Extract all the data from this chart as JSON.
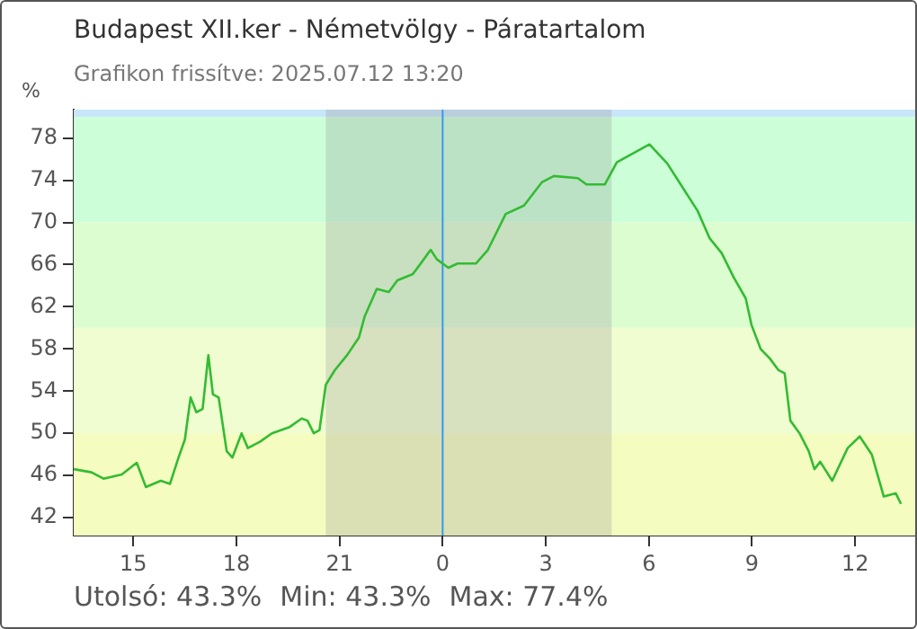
{
  "chart_data": {
    "type": "line",
    "title": "Budapest XII.ker - Németvölgy - Páratartalom",
    "subtitle": "Grafikon frissítve: 2025.07.12 13:20",
    "ylabel": "%",
    "x": [
      "2025-07-11T13:16",
      "2025-07-11T13:47",
      "2025-07-11T14:08",
      "2025-07-11T14:40",
      "2025-07-11T15:06",
      "2025-07-11T15:22",
      "2025-07-11T15:48",
      "2025-07-11T16:04",
      "2025-07-11T16:19",
      "2025-07-11T16:30",
      "2025-07-11T16:40",
      "2025-07-11T16:50",
      "2025-07-11T17:01",
      "2025-07-11T17:11",
      "2025-07-11T17:19",
      "2025-07-11T17:29",
      "2025-07-11T17:43",
      "2025-07-11T17:53",
      "2025-07-11T18:09",
      "2025-07-11T18:20",
      "2025-07-11T18:41",
      "2025-07-11T19:02",
      "2025-07-11T19:33",
      "2025-07-11T19:54",
      "2025-07-11T20:04",
      "2025-07-11T20:15",
      "2025-07-11T20:25",
      "2025-07-11T20:36",
      "2025-07-11T20:52",
      "2025-07-11T21:13",
      "2025-07-11T21:34",
      "2025-07-11T21:44",
      "2025-07-11T22:05",
      "2025-07-11T22:26",
      "2025-07-11T22:41",
      "2025-07-11T23:08",
      "2025-07-11T23:23",
      "2025-07-11T23:39",
      "2025-07-11T23:50",
      "2025-07-12T00:10",
      "2025-07-12T00:26",
      "2025-07-12T00:58",
      "2025-07-12T01:19",
      "2025-07-12T01:50",
      "2025-07-12T02:22",
      "2025-07-12T02:53",
      "2025-07-12T03:14",
      "2025-07-12T03:56",
      "2025-07-12T04:11",
      "2025-07-12T04:43",
      "2025-07-12T05:04",
      "2025-07-12T06:01",
      "2025-07-12T06:32",
      "2025-07-12T06:59",
      "2025-07-12T07:25",
      "2025-07-12T07:46",
      "2025-07-12T08:07",
      "2025-07-12T08:28",
      "2025-07-12T08:49",
      "2025-07-12T08:59",
      "2025-07-12T09:15",
      "2025-07-12T09:31",
      "2025-07-12T09:46",
      "2025-07-12T09:57",
      "2025-07-12T10:07",
      "2025-07-12T10:23",
      "2025-07-12T10:39",
      "2025-07-12T10:49",
      "2025-07-12T10:59",
      "2025-07-12T11:20",
      "2025-07-12T11:47",
      "2025-07-12T12:08",
      "2025-07-12T12:29",
      "2025-07-12T12:50",
      "2025-07-12T13:11",
      "2025-07-12T13:20"
    ],
    "series": [
      {
        "color": "#33bb33",
        "values": [
          46.6,
          46.3,
          45.7,
          46.1,
          47.2,
          44.9,
          45.5,
          45.2,
          47.7,
          49.4,
          53.4,
          52,
          52.3,
          57.4,
          53.7,
          53.4,
          48.3,
          47.7,
          50,
          48.6,
          49.2,
          50,
          50.6,
          51.4,
          51.2,
          50,
          50.3,
          54.6,
          56,
          57.4,
          59.1,
          61.1,
          63.7,
          63.4,
          64.5,
          65.1,
          66.2,
          67.4,
          66.5,
          65.7,
          66.1,
          66.1,
          67.4,
          70.8,
          71.6,
          73.8,
          74.4,
          74.2,
          73.6,
          73.6,
          75.7,
          77.4,
          75.6,
          73.3,
          71.1,
          68.5,
          67.1,
          64.8,
          62.8,
          60.3,
          58,
          57.1,
          56,
          55.7,
          51.2,
          50,
          48.3,
          46.6,
          47.3,
          45.5,
          48.6,
          49.7,
          48,
          44,
          44.3,
          43.3
        ]
      }
    ],
    "xlim": [
      "2025-07-11T13:16",
      "2025-07-12T13:48"
    ],
    "xticks": [
      {
        "value": "2025-07-11T15:00",
        "label": "15"
      },
      {
        "value": "2025-07-11T18:00",
        "label": "18"
      },
      {
        "value": "2025-07-11T21:00",
        "label": "21"
      },
      {
        "value": "2025-07-12T00:00",
        "label": "0"
      },
      {
        "value": "2025-07-12T03:00",
        "label": "3"
      },
      {
        "value": "2025-07-12T06:00",
        "label": "6"
      },
      {
        "value": "2025-07-12T09:00",
        "label": "9"
      },
      {
        "value": "2025-07-12T12:00",
        "label": "12"
      }
    ],
    "ylim": [
      40.3,
      80.7
    ],
    "yticks": [
      42,
      46,
      50,
      54,
      58,
      62,
      66,
      70,
      74,
      78
    ],
    "grid": false,
    "legend": false,
    "marker": "none",
    "line_style": "solid",
    "bands": [
      {
        "axis": "y",
        "from": 80,
        "to": 80.7,
        "color": "#c8e6fa"
      },
      {
        "axis": "y",
        "from": 70,
        "to": 80,
        "color": "#ccffd8"
      },
      {
        "axis": "y",
        "from": 60,
        "to": 70,
        "color": "#dcfdd0"
      },
      {
        "axis": "y",
        "from": 50,
        "to": 60,
        "color": "#f0fdd0"
      },
      {
        "axis": "y",
        "from": 40.3,
        "to": 50,
        "color": "#f5fcc0"
      },
      {
        "axis": "x",
        "from": "2025-07-11T20:36",
        "to": "2025-07-12T04:55",
        "color": "#8c8c8c"
      }
    ],
    "ref_lines": [
      {
        "axis": "x",
        "value": "2025-07-12T00:00",
        "color": "#3399ee"
      }
    ],
    "annotations": [
      "Utolsó: 43.3%",
      "Min: 43.3%",
      "Max: 77.4%"
    ]
  }
}
